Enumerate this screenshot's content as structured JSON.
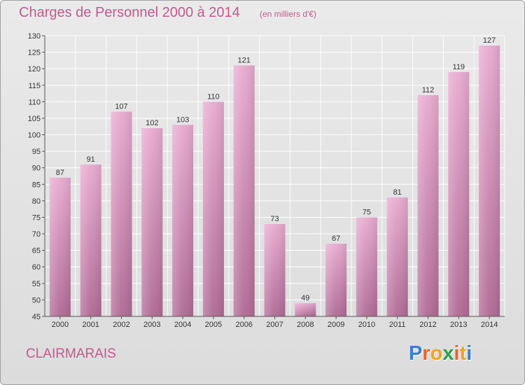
{
  "header": {
    "title": "Charges de Personnel 2000 à 2014",
    "subtitle": "(en milliers d'€)"
  },
  "footer": {
    "commune": "CLAIRMARAIS",
    "logo_text": "Proxiti",
    "logo_colors": [
      "#3a7fd0",
      "#e8632a",
      "#f2a31f",
      "#2aa34a",
      "#e8632a",
      "#f2a31f",
      "#3a7fd0"
    ]
  },
  "colors": {
    "title": "#c05a8f",
    "bar_top": "#e8aad0",
    "bar_bottom": "#b06a95",
    "grid": "#ffffff"
  },
  "chart_data": {
    "type": "bar",
    "title": "Charges de Personnel 2000 à 2014",
    "subtitle": "(en milliers d'€)",
    "xlabel": "",
    "ylabel": "",
    "categories": [
      "2000",
      "2001",
      "2002",
      "2003",
      "2004",
      "2005",
      "2006",
      "2007",
      "2008",
      "2009",
      "2010",
      "2011",
      "2012",
      "2013",
      "2014"
    ],
    "values": [
      87,
      91,
      107,
      102,
      103,
      110,
      121,
      73,
      49,
      67,
      75,
      81,
      112,
      119,
      127
    ],
    "ylim": [
      45,
      130
    ],
    "yticks": [
      45,
      50,
      55,
      60,
      65,
      70,
      75,
      80,
      85,
      90,
      95,
      100,
      105,
      110,
      115,
      120,
      125,
      130
    ],
    "grid": true
  }
}
